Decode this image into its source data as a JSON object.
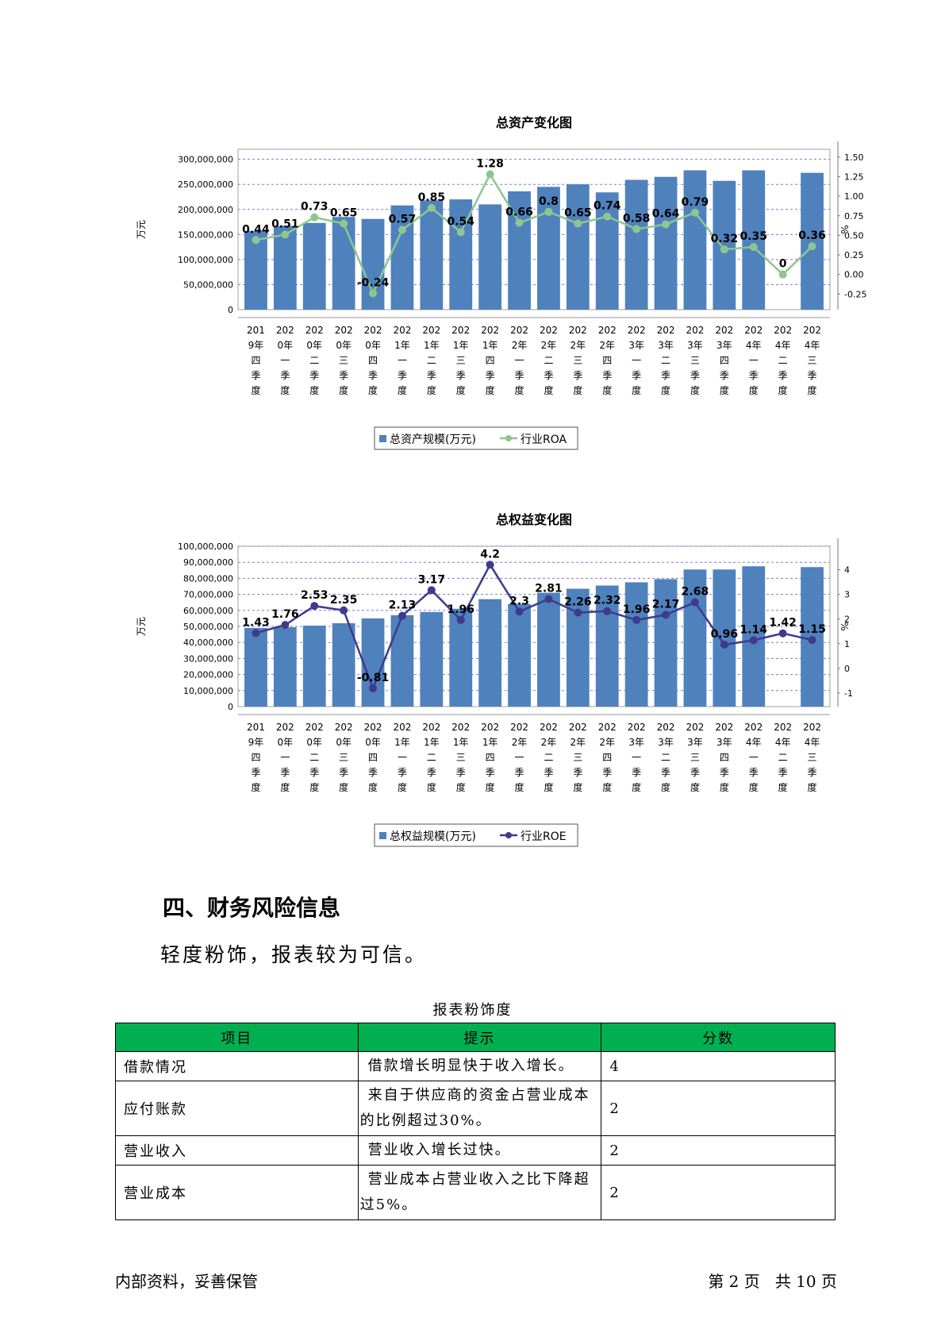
{
  "charts": [
    {
      "type": "bar+line",
      "title": "总资产变化图",
      "ylabel_left": "万元",
      "ylabel_right": "%",
      "left_ticks": [
        "300,000,000",
        "250,000,000",
        "200,000,000",
        "150,000,000",
        "100,000,000",
        "50,000,000",
        "0"
      ],
      "right_ticks": [
        "1.50",
        "1.25",
        "1.00",
        "0.75",
        "0.50",
        "0.25",
        "0.00",
        "-0.25"
      ],
      "categories": [
        [
          "201",
          "9年",
          "四",
          "季",
          "度"
        ],
        [
          "202",
          "0年",
          "一",
          "季",
          "度"
        ],
        [
          "202",
          "0年",
          "二",
          "季",
          "度"
        ],
        [
          "202",
          "0年",
          "三",
          "季",
          "度"
        ],
        [
          "202",
          "0年",
          "四",
          "季",
          "度"
        ],
        [
          "202",
          "1年",
          "一",
          "季",
          "度"
        ],
        [
          "202",
          "1年",
          "二",
          "季",
          "度"
        ],
        [
          "202",
          "1年",
          "三",
          "季",
          "度"
        ],
        [
          "202",
          "1年",
          "四",
          "季",
          "度"
        ],
        [
          "202",
          "2年",
          "一",
          "季",
          "度"
        ],
        [
          "202",
          "2年",
          "二",
          "季",
          "度"
        ],
        [
          "202",
          "2年",
          "三",
          "季",
          "度"
        ],
        [
          "202",
          "2年",
          "四",
          "季",
          "度"
        ],
        [
          "202",
          "3年",
          "一",
          "季",
          "度"
        ],
        [
          "202",
          "3年",
          "二",
          "季",
          "度"
        ],
        [
          "202",
          "3年",
          "三",
          "季",
          "度"
        ],
        [
          "202",
          "3年",
          "四",
          "季",
          "度"
        ],
        [
          "202",
          "4年",
          "一",
          "季",
          "度"
        ],
        [
          "202",
          "4年",
          "二",
          "季",
          "度"
        ],
        [
          "202",
          "4年",
          "三",
          "季",
          "度"
        ]
      ],
      "bar_series": {
        "name": "总资产规模(万元)",
        "color": "#4f81bd",
        "values": [
          157000000,
          167000000,
          173000000,
          185000000,
          181000000,
          208000000,
          218000000,
          220000000,
          210000000,
          236000000,
          245000000,
          250000000,
          234000000,
          259000000,
          265000000,
          278000000,
          257000000,
          278000000,
          null,
          273000000
        ]
      },
      "line_series": {
        "name": "行业ROA",
        "color": "#8fc68f",
        "values": [
          0.44,
          0.51,
          0.73,
          0.65,
          -0.24,
          0.57,
          0.85,
          0.54,
          1.28,
          0.66,
          0.8,
          0.65,
          0.74,
          0.58,
          0.64,
          0.79,
          0.32,
          0.35,
          0,
          0.36
        ],
        "labels": [
          "0.44",
          "0.51",
          "0.73",
          "0.65",
          "-0.24",
          "0.57",
          "0.85",
          "0.54",
          "1.28",
          "0.66",
          "0.8",
          "0.65",
          "0.74",
          "0.58",
          "0.64",
          "0.79",
          "0.32",
          "0.35",
          "0",
          "0.36"
        ]
      },
      "ylim_left": [
        0,
        320000000
      ],
      "ylim_right": [
        -0.45,
        1.6
      ]
    },
    {
      "type": "bar+line",
      "title": "总权益变化图",
      "ylabel_left": "万元",
      "ylabel_right": "%",
      "left_ticks": [
        "100,000,000",
        "90,000,000",
        "80,000,000",
        "70,000,000",
        "60,000,000",
        "50,000,000",
        "40,000,000",
        "30,000,000",
        "20,000,000",
        "10,000,000",
        "0"
      ],
      "right_ticks": [
        "4",
        "3",
        "2",
        "1",
        "0",
        "-1"
      ],
      "categories": [
        [
          "201",
          "9年",
          "四",
          "季",
          "度"
        ],
        [
          "202",
          "0年",
          "一",
          "季",
          "度"
        ],
        [
          "202",
          "0年",
          "二",
          "季",
          "度"
        ],
        [
          "202",
          "0年",
          "三",
          "季",
          "度"
        ],
        [
          "202",
          "0年",
          "四",
          "季",
          "度"
        ],
        [
          "202",
          "1年",
          "一",
          "季",
          "度"
        ],
        [
          "202",
          "1年",
          "二",
          "季",
          "度"
        ],
        [
          "202",
          "1年",
          "三",
          "季",
          "度"
        ],
        [
          "202",
          "1年",
          "四",
          "季",
          "度"
        ],
        [
          "202",
          "2年",
          "一",
          "季",
          "度"
        ],
        [
          "202",
          "2年",
          "二",
          "季",
          "度"
        ],
        [
          "202",
          "2年",
          "三",
          "季",
          "度"
        ],
        [
          "202",
          "2年",
          "四",
          "季",
          "度"
        ],
        [
          "202",
          "3年",
          "一",
          "季",
          "度"
        ],
        [
          "202",
          "3年",
          "二",
          "季",
          "度"
        ],
        [
          "202",
          "3年",
          "三",
          "季",
          "度"
        ],
        [
          "202",
          "3年",
          "四",
          "季",
          "度"
        ],
        [
          "202",
          "4年",
          "一",
          "季",
          "度"
        ],
        [
          "202",
          "4年",
          "二",
          "季",
          "度"
        ],
        [
          "202",
          "4年",
          "三",
          "季",
          "度"
        ]
      ],
      "bar_series": {
        "name": "总权益规模(万元)",
        "color": "#4f81bd",
        "values": [
          49000000,
          49500000,
          50500000,
          52000000,
          55000000,
          57000000,
          59000000,
          61000000,
          67000000,
          64000000,
          71000000,
          73500000,
          75500000,
          77500000,
          79500000,
          85500000,
          85500000,
          87500000,
          null,
          87000000
        ]
      },
      "line_series": {
        "name": "行业ROE",
        "color": "#3f3a8c",
        "values": [
          1.43,
          1.76,
          2.53,
          2.35,
          -0.81,
          2.13,
          3.17,
          1.96,
          4.2,
          2.3,
          2.81,
          2.26,
          2.32,
          1.96,
          2.17,
          2.68,
          0.96,
          1.14,
          1.42,
          1.15
        ],
        "labels": [
          "1.43",
          "1.76",
          "2.53",
          "2.35",
          "-0.81",
          "2.13",
          "3.17",
          "1.96",
          "4.2",
          "2.3",
          "2.81",
          "2.26",
          "2.32",
          "1.96",
          "2.17",
          "2.68",
          "0.96",
          "1.14",
          "1.42",
          "1.15"
        ]
      },
      "ylim_left": [
        0,
        100000000
      ],
      "ylim_right": [
        -1.55,
        4.95
      ]
    }
  ],
  "section": {
    "heading": "四、财务风险信息",
    "summary": "轻度粉饰，报表较为可信。"
  },
  "table": {
    "caption": "报表粉饰度",
    "headers": [
      "项目",
      "提示",
      "分数"
    ],
    "header_color": "#00b050",
    "rows": [
      {
        "item": "借款情况",
        "hint": "借款增长明显快于收入增长。",
        "score": "4"
      },
      {
        "item": "应付账款",
        "hint": "来自于供应商的资金占营业成本的比例超过30%。",
        "score": "2"
      },
      {
        "item": "营业收入",
        "hint": "营业收入增长过快。",
        "score": "2"
      },
      {
        "item": "营业成本",
        "hint": "营业成本占营业收入之比下降超过5%。",
        "score": "2"
      }
    ]
  },
  "footer": {
    "left": "内部资料，妥善保管",
    "right": "第 2 页   共 10 页"
  }
}
